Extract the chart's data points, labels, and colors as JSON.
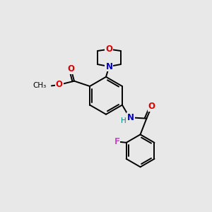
{
  "bg_color": "#e8e8e8",
  "bond_color": "#000000",
  "atom_colors": {
    "O": "#dd0000",
    "N": "#0000cc",
    "F": "#cc44cc",
    "H": "#008888",
    "C": "#000000"
  },
  "font_size": 8.5,
  "line_width": 1.4,
  "fig_width": 3.0,
  "fig_height": 3.0,
  "dpi": 100
}
